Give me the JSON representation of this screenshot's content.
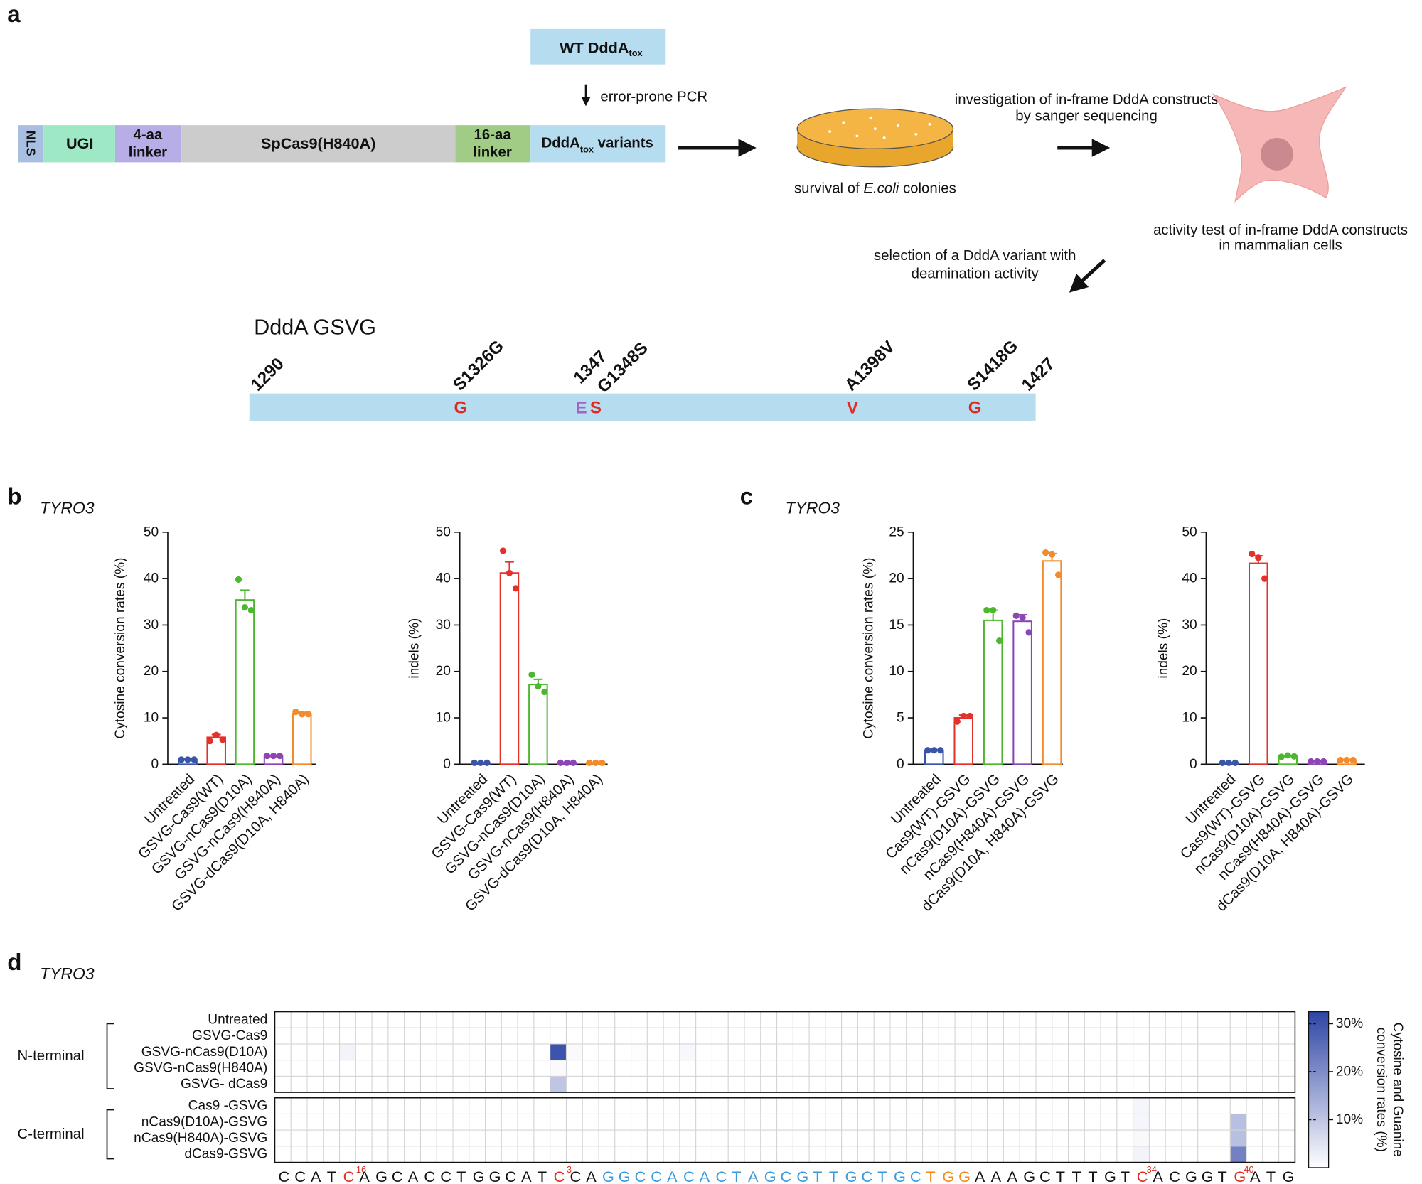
{
  "panel_labels": [
    "a",
    "b",
    "c",
    "d"
  ],
  "gene_labels": [
    "TYRO3",
    "TYRO3",
    "TYRO3"
  ],
  "panel_a": {
    "wt_box": {
      "text": "WT DddA",
      "sub": "tox"
    },
    "pcr": "error-prone PCR",
    "construct": {
      "nls": "NLS",
      "ugi": "UGI",
      "linker4": [
        "4-aa",
        "linker"
      ],
      "cas9": "SpCas9(H840A)",
      "linker16": [
        "16-aa",
        "linker"
      ],
      "dddA": {
        "text": "DddA",
        "sub": "tox",
        "tail": " variants"
      }
    },
    "survival": {
      "pre": "survival of ",
      "em": "E.coli",
      "post": " colonies"
    },
    "investigation": [
      "investigation of in-frame DddA constructs",
      "by sanger sequencing"
    ],
    "activity": [
      "activity test of in-frame DddA constructs",
      "in mammalian cells"
    ],
    "selection": [
      "selection of a DddA variant with",
      "deamination activity"
    ],
    "variant": {
      "title": "DddA GSVG",
      "positions": [
        "1290",
        "S1326G",
        "1347",
        "G1348S",
        "A1398V",
        "S1418G",
        "1427"
      ],
      "residues": [
        "G",
        "E",
        "S",
        "V",
        "G"
      ]
    }
  },
  "chart_data": [
    {
      "type": "bar",
      "ylabel": "Cytosine conversion rates (%)",
      "categories": [
        "Untreated",
        "GSVG-Cas9(WT)",
        "GSVG-nCas9(D10A)",
        "GSVG-nCas9(H840A)",
        "GSVG-dCas9(D10A, H840A)"
      ],
      "colors": [
        "#3a55a6",
        "#e4322b",
        "#4cb72f",
        "#8b45b5",
        "#f28b2c"
      ],
      "values": [
        1.0,
        5.8,
        35.4,
        1.8,
        10.9
      ],
      "errors": [
        0.1,
        0.6,
        2.1,
        0.1,
        0.3
      ],
      "points": [
        [
          1,
          1,
          1
        ],
        [
          5,
          6.3,
          5.3
        ],
        [
          39.8,
          33.8,
          33.2
        ],
        [
          1.8,
          1.8,
          1.8
        ],
        [
          11.3,
          10.8,
          10.8
        ]
      ],
      "ylim": [
        0,
        50
      ],
      "yticks": [
        0,
        10,
        20,
        30,
        40,
        50
      ]
    },
    {
      "type": "bar",
      "ylabel": "indels (%)",
      "categories": [
        "Untreated",
        "GSVG-Cas9(WT)",
        "GSVG-nCas9(D10A)",
        "GSVG-nCas9(H840A)",
        "GSVG-dCas9(D10A, H840A)"
      ],
      "colors": [
        "#3a55a6",
        "#e4322b",
        "#4cb72f",
        "#8b45b5",
        "#f28b2c"
      ],
      "values": [
        0.3,
        41.2,
        17.2,
        0.3,
        0.3
      ],
      "errors": [
        0,
        2.4,
        1.1,
        0,
        0
      ],
      "points": [
        [
          0.3,
          0.3,
          0.3
        ],
        [
          46,
          41.2,
          37.9
        ],
        [
          19.3,
          16.8,
          15.6
        ],
        [
          0.3,
          0.3,
          0.3
        ],
        [
          0.3,
          0.3,
          0.3
        ]
      ],
      "ylim": [
        0,
        50
      ],
      "yticks": [
        0,
        10,
        20,
        30,
        40,
        50
      ]
    },
    {
      "type": "bar",
      "ylabel": "Cytosine conversion rates (%)",
      "categories": [
        "Untreated",
        "Cas9(WT)-GSVG",
        "nCas9(D10A)-GSVG",
        "nCas9(H840A)-GSVG",
        "dCas9(D10A, H840A)-GSVG"
      ],
      "colors": [
        "#3a55a6",
        "#e4322b",
        "#4cb72f",
        "#8b45b5",
        "#f28b2c"
      ],
      "values": [
        1.5,
        5.0,
        15.5,
        15.4,
        21.9
      ],
      "errors": [
        0.05,
        0.3,
        1.1,
        0.7,
        0.8
      ],
      "points": [
        [
          1.5,
          1.5,
          1.5
        ],
        [
          4.6,
          5.2,
          5.2
        ],
        [
          16.6,
          16.6,
          13.3
        ],
        [
          16,
          15.8,
          14.2
        ],
        [
          22.8,
          22.6,
          20.4
        ]
      ],
      "ylim": [
        0,
        25
      ],
      "yticks": [
        0,
        5,
        10,
        15,
        20,
        25
      ]
    },
    {
      "type": "bar",
      "ylabel": "indels (%)",
      "categories": [
        "Untreated",
        "Cas9(WT)-GSVG",
        "nCas9(D10A)-GSVG",
        "nCas9(H840A)-GSVG",
        "dCas9(D10A, H840A)-GSVG"
      ],
      "colors": [
        "#3a55a6",
        "#e4322b",
        "#4cb72f",
        "#8b45b5",
        "#f28b2c"
      ],
      "values": [
        0.3,
        43.3,
        1.7,
        0.6,
        0.9
      ],
      "errors": [
        0,
        1.6,
        0.2,
        0.1,
        0.1
      ],
      "points": [
        [
          0.3,
          0.3,
          0.3
        ],
        [
          45.3,
          44.5,
          40
        ],
        [
          1.6,
          1.9,
          1.7
        ],
        [
          0.6,
          0.6,
          0.6
        ],
        [
          0.9,
          0.9,
          0.9
        ]
      ],
      "ylim": [
        0,
        50
      ],
      "yticks": [
        0,
        10,
        20,
        30,
        40,
        50
      ]
    },
    {
      "type": "heatmap",
      "color": "#2e45a5",
      "zlim": [
        0,
        32.5
      ],
      "zticks": [
        {
          "value": 10,
          "label": "10%"
        },
        {
          "value": 20,
          "label": "20%"
        },
        {
          "value": 30,
          "label": "30%"
        }
      ],
      "colorbar_label": [
        "Cytosine and Guanine",
        "conversion rates (%)"
      ],
      "groups": [
        {
          "name": "N-terminal",
          "rows": [
            "Untreated",
            "GSVG-Cas9",
            "GSVG-nCas9(D10A)",
            "GSVG-nCas9(H840A)",
            "GSVG- dCas9"
          ],
          "values": [
            [
              0,
              0,
              0,
              0,
              0,
              0,
              0,
              0,
              0,
              0,
              0,
              0,
              0,
              0,
              0,
              0,
              0,
              0,
              0,
              0,
              0,
              0,
              0,
              0,
              0,
              0,
              0,
              0,
              0,
              0,
              0,
              0,
              0,
              0,
              0,
              0,
              0,
              0,
              0,
              0,
              0,
              0,
              0,
              0,
              0,
              0,
              0,
              0,
              0,
              0,
              0,
              0,
              0,
              0,
              0,
              0,
              0,
              0,
              0,
              0,
              0,
              0,
              0
            ],
            [
              0,
              0,
              0,
              0,
              0,
              0,
              0,
              0,
              0,
              0,
              0,
              0,
              0,
              0,
              0,
              0,
              0,
              0,
              0,
              0,
              0,
              0,
              0,
              0,
              0,
              0,
              0,
              0,
              0,
              0,
              0,
              0,
              0,
              0,
              0,
              0,
              0,
              0,
              0,
              0,
              0,
              0,
              0,
              0,
              0,
              0,
              0,
              0,
              0,
              0,
              0,
              0,
              0,
              0,
              0,
              0,
              0,
              0,
              0,
              0,
              0,
              0,
              0
            ],
            [
              0,
              0,
              0,
              0,
              2,
              0,
              0,
              0,
              0,
              0,
              0,
              0,
              0,
              0,
              0,
              0,
              0,
              30,
              0.8,
              0,
              0,
              0,
              0.4,
              0,
              0,
              1.2,
              0,
              0,
              0,
              0,
              0,
              0,
              0,
              0,
              0,
              0,
              0,
              0,
              0,
              0,
              0,
              0,
              0,
              0,
              0,
              0,
              0,
              0,
              0,
              0,
              0,
              0,
              0,
              0,
              0,
              0,
              0,
              0,
              0,
              0,
              0,
              0,
              0
            ],
            [
              0,
              0,
              0,
              0,
              0,
              0,
              0,
              0,
              0,
              0,
              0,
              0,
              0,
              0,
              0,
              0,
              0,
              0.8,
              0,
              0,
              0,
              0,
              0,
              0,
              0,
              0,
              0,
              0,
              0,
              0,
              0,
              0,
              0,
              0,
              0,
              0,
              0,
              0,
              0,
              0,
              0,
              0,
              0,
              0,
              0,
              0,
              0,
              0,
              0,
              0,
              0,
              0,
              0,
              0,
              0,
              0,
              0,
              0,
              0,
              0,
              0,
              0,
              0
            ],
            [
              0,
              0,
              0,
              0,
              0,
              0,
              0,
              0,
              0,
              0,
              0,
              0,
              0,
              0,
              0,
              0,
              0,
              10,
              0,
              0,
              0,
              0,
              0,
              0,
              0,
              0,
              0,
              0,
              0,
              0,
              0,
              0,
              0,
              0,
              0,
              0,
              0,
              0,
              0,
              0,
              0,
              0,
              0,
              0,
              0,
              0,
              0,
              0,
              0,
              0,
              0,
              0,
              0,
              0,
              0,
              0,
              0,
              0,
              0,
              0,
              0,
              0,
              0
            ]
          ]
        },
        {
          "name": "C-terminal",
          "rows": [
            "Cas9 -GSVG",
            "nCas9(D10A)-GSVG",
            "nCas9(H840A)-GSVG",
            "dCas9-GSVG"
          ],
          "values": [
            [
              0,
              0,
              0,
              0,
              0,
              0,
              0,
              0,
              0,
              0,
              0,
              0,
              0,
              0,
              0,
              0,
              0,
              0,
              0,
              0,
              0,
              0,
              0,
              0,
              0,
              0,
              0,
              0,
              0,
              0,
              0,
              0,
              0,
              0,
              0,
              0,
              0,
              0,
              0,
              0,
              0,
              0,
              0,
              0,
              0,
              0,
              0,
              0,
              0,
              0,
              0,
              0,
              0,
              1.5,
              0,
              0,
              0,
              0,
              0,
              0,
              0,
              0,
              0
            ],
            [
              0,
              0,
              0,
              0,
              0,
              0,
              0,
              0,
              0,
              0,
              0,
              0,
              0,
              0,
              0,
              0,
              0,
              0,
              0,
              0,
              0,
              0,
              0,
              0,
              0,
              0,
              0,
              0,
              0,
              0,
              0,
              0,
              0,
              0,
              0,
              0,
              0,
              0,
              0,
              0,
              0,
              0,
              0,
              0,
              0,
              0,
              0,
              0,
              0,
              0,
              0,
              0,
              0,
              1.5,
              0,
              0,
              0,
              0,
              0,
              11,
              0,
              0,
              0
            ],
            [
              0,
              0,
              0,
              0,
              0,
              0,
              0,
              0,
              0,
              0,
              0,
              0,
              0,
              0,
              0,
              0,
              0,
              0,
              0,
              0,
              0,
              0,
              0,
              0,
              0,
              0,
              0,
              0,
              0,
              0,
              0,
              0,
              0,
              0,
              0,
              0,
              0,
              0,
              0,
              0,
              0,
              0,
              0,
              0,
              0,
              0,
              0,
              0,
              0,
              0,
              0,
              0,
              0,
              1,
              0,
              0,
              0,
              0,
              0,
              11,
              0,
              0,
              0
            ],
            [
              0,
              0,
              0,
              0,
              0,
              0,
              0,
              0,
              0,
              0,
              0,
              0,
              0,
              0,
              0,
              0,
              0,
              0,
              0,
              0,
              0,
              0,
              0,
              0,
              0,
              0,
              0,
              0,
              0,
              0,
              0,
              0,
              0,
              0,
              0,
              0,
              0,
              0,
              0,
              0,
              0,
              0,
              0,
              0,
              0,
              0,
              0,
              0,
              0,
              0,
              0,
              0,
              0,
              2,
              0,
              0,
              0,
              0,
              0,
              22,
              0,
              0,
              0
            ]
          ]
        }
      ],
      "sequence": [
        {
          "text": "CCAT",
          "color": "#111111"
        },
        {
          "text": "C",
          "sup": "-16",
          "color": "#e02b20"
        },
        {
          "text": "AGCACCTGGCAT",
          "color": "#111111"
        },
        {
          "text": "C",
          "sup": "-3",
          "color": "#e02b20"
        },
        {
          "text": "CA",
          "color": "#111111"
        },
        {
          "text": "GGCCACACTAGCGTTGCTGC",
          "color": "#3a9ad9"
        },
        {
          "text": "TGG",
          "color": "#f08a1c"
        },
        {
          "text": "AAAGCTTTGT",
          "color": "#111111"
        },
        {
          "text": "C",
          "sup": "34",
          "color": "#e02b20"
        },
        {
          "text": "ACGGT",
          "color": "#111111"
        },
        {
          "text": "G",
          "sup": "40",
          "color": "#e02b20"
        },
        {
          "text": "ATG",
          "color": "#111111"
        }
      ]
    }
  ]
}
